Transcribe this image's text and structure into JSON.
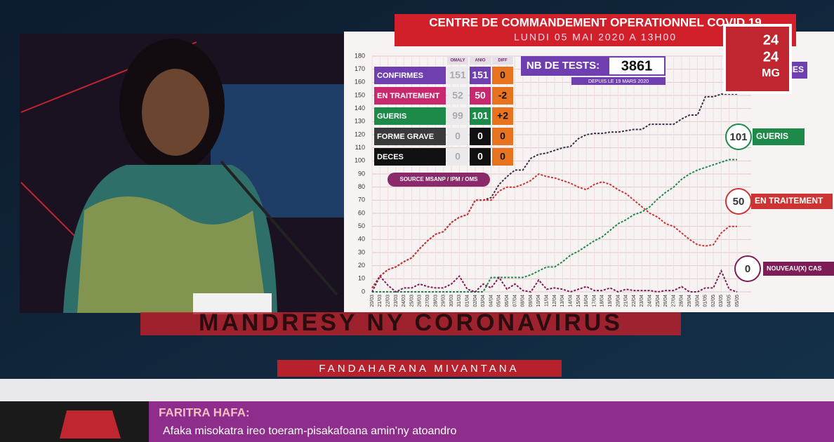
{
  "banner": {
    "title": "CENTRE DE COMMANDEMENT OPERATIONNEL COVID 19",
    "date": "LUNDI 05 MAI 2020 A 13H00"
  },
  "logo": {
    "line1": "24",
    "line2": "24",
    "line3": "MG"
  },
  "table": {
    "header": [
      "OMALY",
      "ANIO",
      "DIFF"
    ],
    "rows": [
      [
        "CONFIRMES",
        "151",
        "151",
        "0"
      ],
      [
        "EN TRAITEMENT",
        "52",
        "50",
        "-2"
      ],
      [
        "GUERIS",
        "99",
        "101",
        "+2"
      ],
      [
        "FORME GRAVE",
        "0",
        "0",
        "0"
      ],
      [
        "DECES",
        "0",
        "0",
        "0"
      ]
    ]
  },
  "tests": {
    "label": "NB DE TESTS:",
    "value": "3861",
    "since": "DEPUIS LE 19 MARS 2020"
  },
  "source": "SOURCE MSANP / IPM / OMS",
  "chart_data": {
    "type": "line",
    "categories": [
      "20/03",
      "21/03",
      "22/03",
      "23/03",
      "24/03",
      "25/03",
      "26/03",
      "27/03",
      "28/03",
      "29/03",
      "30/03",
      "31/03",
      "01/04",
      "02/04",
      "03/04",
      "04/04",
      "05/04",
      "06/04",
      "07/04",
      "08/04",
      "09/04",
      "10/04",
      "11/04",
      "12/04",
      "13/04",
      "14/04",
      "15/04",
      "16/04",
      "17/04",
      "18/04",
      "19/04",
      "20/04",
      "21/04",
      "22/04",
      "23/04",
      "24/04",
      "25/04",
      "26/04",
      "27/04",
      "28/04",
      "29/04",
      "30/04",
      "01/05",
      "02/05",
      "03/05",
      "04/05",
      "05/05"
    ],
    "series": [
      {
        "name": "CONFIRMES",
        "color": "#3a3148",
        "values": [
          3,
          12,
          17,
          19,
          23,
          26,
          33,
          39,
          44,
          46,
          53,
          57,
          59,
          70,
          70,
          72,
          82,
          88,
          93,
          93,
          102,
          105,
          106,
          108,
          110,
          111,
          117,
          120,
          121,
          121,
          122,
          122,
          123,
          124,
          124,
          128,
          128,
          128,
          128,
          132,
          135,
          135,
          149,
          149,
          151,
          151,
          151
        ]
      },
      {
        "name": "EN TRAITEMENT",
        "color": "#cc3434",
        "values": [
          3,
          12,
          17,
          19,
          23,
          26,
          33,
          39,
          44,
          46,
          53,
          57,
          59,
          70,
          70,
          70,
          77,
          80,
          80,
          82,
          85,
          90,
          88,
          87,
          85,
          83,
          80,
          78,
          82,
          84,
          82,
          78,
          75,
          70,
          65,
          60,
          57,
          52,
          50,
          45,
          40,
          36,
          35,
          36,
          45,
          50,
          50
        ]
      },
      {
        "name": "GUERIS",
        "color": "#1e8a4a",
        "values": [
          0,
          0,
          0,
          0,
          0,
          0,
          0,
          0,
          0,
          0,
          0,
          0,
          0,
          0,
          0,
          11,
          11,
          11,
          11,
          11,
          13,
          16,
          19,
          19,
          23,
          28,
          31,
          35,
          39,
          42,
          47,
          52,
          55,
          59,
          61,
          65,
          71,
          76,
          80,
          86,
          90,
          93,
          95,
          97,
          99,
          101,
          101
        ]
      },
      {
        "name": "NOUVEAU(X) CAS",
        "color": "#7e1d55",
        "values": [
          0,
          12,
          5,
          0,
          3,
          3,
          6,
          4,
          3,
          3,
          6,
          12,
          2,
          0,
          6,
          3,
          11,
          2,
          6,
          1,
          0,
          9,
          2,
          3,
          2,
          0,
          2,
          4,
          1,
          1,
          3,
          0,
          2,
          1,
          1,
          1,
          0,
          1,
          1,
          4,
          0,
          0,
          3,
          3,
          16,
          2,
          0
        ]
      }
    ],
    "ylim": [
      0,
      180
    ],
    "yticks": [
      0,
      10,
      20,
      30,
      40,
      50,
      60,
      70,
      80,
      90,
      100,
      110,
      120,
      130,
      140,
      150,
      160,
      170,
      180
    ],
    "grid": true
  },
  "program": {
    "title": "MANDRESY NY CORONAVIRUS",
    "live": "FANDAHARANA MIVANTANA"
  },
  "lower_third": {
    "heading": "FARITRA HAFA:",
    "text": "Afaka misokatra ireo toeram-pisakafoana amin'ny atoandro"
  }
}
